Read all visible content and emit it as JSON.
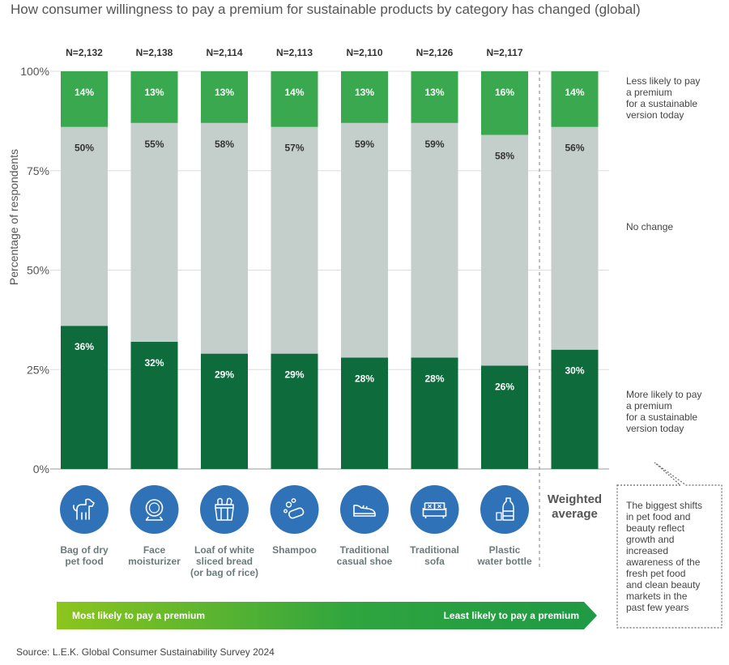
{
  "chart_data": {
    "type": "bar",
    "stacked": true,
    "title": "How consumer willingness to pay a premium for sustainable products by category has changed (global)",
    "ylabel": "Percentage of respondents",
    "ylim": [
      0,
      100
    ],
    "yticks": [
      "0%",
      "25%",
      "50%",
      "75%",
      "100%"
    ],
    "categories": [
      [
        "Bag of dry",
        "pet food"
      ],
      [
        "Face",
        "moisturizer"
      ],
      [
        "Loaf of white",
        "sliced bread",
        "(or bag of rice)"
      ],
      [
        "Shampoo"
      ],
      [
        "Traditional",
        "casual shoe"
      ],
      [
        "Traditional",
        "sofa"
      ],
      [
        "Plastic",
        "water bottle"
      ],
      [
        "Weighted",
        "average"
      ]
    ],
    "sample_sizes": [
      "N=2,132",
      "N=2,138",
      "N=2,114",
      "N=2,113",
      "N=2,110",
      "N=2,126",
      "N=2,117",
      ""
    ],
    "series": [
      {
        "name": "More likely to pay a premium for a sustainable version today",
        "color": "#0e6b3c",
        "label_color": "#ffffff",
        "values": [
          36,
          32,
          29,
          29,
          28,
          28,
          26,
          30
        ],
        "labels": [
          "36%",
          "32%",
          "29%",
          "29%",
          "28%",
          "28%",
          "26%",
          "30%"
        ]
      },
      {
        "name": "No change",
        "color": "#c4cfcc",
        "label_color": "#333333",
        "values": [
          50,
          55,
          58,
          57,
          59,
          59,
          58,
          56
        ],
        "labels": [
          "50%",
          "55%",
          "58%",
          "57%",
          "59%",
          "59%",
          "58%",
          "56%"
        ]
      },
      {
        "name": "Less likely to pay a premium for a sustainable version today",
        "color": "#3aa84f",
        "label_color": "#ffffff",
        "values": [
          14,
          13,
          13,
          14,
          13,
          13,
          16,
          14
        ],
        "labels": [
          "14%",
          "13%",
          "13%",
          "14%",
          "13%",
          "13%",
          "16%",
          "14%"
        ]
      }
    ],
    "legend": [
      {
        "lines": [
          "Less likely to pay",
          "a premium",
          "for a sustainable",
          "version today"
        ]
      },
      {
        "lines": [
          "No change"
        ]
      },
      {
        "lines": [
          "More likely to pay",
          "a premium",
          "for a sustainable",
          "version today"
        ]
      }
    ],
    "icons": [
      "dog-icon",
      "face-cream-icon",
      "bread-basket-icon",
      "shampoo-bubbles-icon",
      "shoe-icon",
      "sofa-icon",
      "water-bottle-icon"
    ],
    "arrow": {
      "left_label": "Most likely to pay a premium",
      "right_label": "Least likely to pay a premium"
    },
    "note_lines": [
      "The biggest shifts",
      "in pet food and",
      "beauty reflect",
      "growth and",
      "increased",
      "awareness of the",
      "fresh pet food",
      "and clean beauty",
      "markets in the",
      "past few years"
    ],
    "source": "Source: L.E.K. Global Consumer Sustainability Survey 2024"
  }
}
